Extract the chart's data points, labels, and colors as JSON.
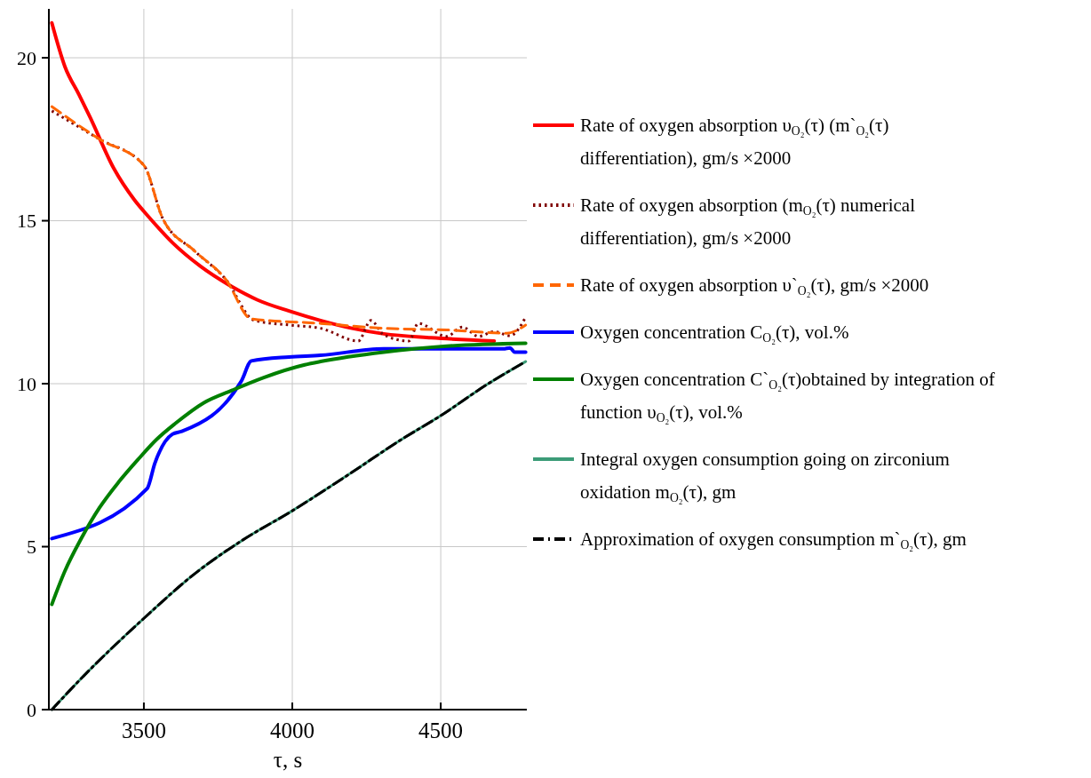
{
  "chart_data": {
    "type": "line",
    "xlabel": "τ, s",
    "xlim": [
      3180,
      4790
    ],
    "xticks": [
      3500,
      4000,
      4500
    ],
    "ylim": [
      0,
      21.5
    ],
    "yticks": [
      0,
      5,
      10,
      15,
      20
    ],
    "grid": true,
    "legend": "right",
    "series": [
      {
        "name": "Rate of oxygen absorption υ$_{O₂}$(τ) (m`$_{O₂}$(τ) differentiation), gm/s ×2000",
        "color": "#ff0000",
        "line_style": "solid",
        "x": [
          3190,
          3234,
          3282,
          3319,
          3399,
          3468,
          3521,
          3596,
          3691,
          3798,
          3883,
          3989,
          4095,
          4201,
          4308,
          4467,
          4680
        ],
        "values": [
          21.07,
          19.73,
          18.86,
          18.17,
          16.6,
          15.64,
          15.07,
          14.33,
          13.6,
          12.97,
          12.57,
          12.23,
          11.94,
          11.7,
          11.53,
          11.41,
          11.31
        ]
      },
      {
        "name": "Rate of oxygen absorption (m$_{O₂}$(τ) numerical differentiation), gm/s ×2000",
        "color": "#800000",
        "line_style": "dotted",
        "x": [
          3190,
          3351,
          3500,
          3564,
          3670,
          3776,
          3872,
          3989,
          4095,
          4222,
          4265,
          4308,
          4393,
          4424,
          4520,
          4573,
          4627,
          4680,
          4733,
          4786
        ],
        "values": [
          18.37,
          17.5,
          16.7,
          15.06,
          14.08,
          13.2,
          11.94,
          11.8,
          11.7,
          11.31,
          11.94,
          11.5,
          11.31,
          11.85,
          11.45,
          11.74,
          11.45,
          11.6,
          11.47,
          12.04
        ]
      },
      {
        "name": "Rate of oxygen absorption υ`$_{O₂}$(τ), gm/s ×2000",
        "color": "#ff6600",
        "line_style": "dashed",
        "x": [
          3190,
          3351,
          3500,
          3564,
          3670,
          3776,
          3862,
          4095,
          4308,
          4520,
          4722,
          4786
        ],
        "values": [
          18.5,
          17.5,
          16.7,
          15.06,
          14.08,
          13.2,
          11.99,
          11.85,
          11.7,
          11.65,
          11.55,
          11.8
        ]
      },
      {
        "name": "Oxygen concentration C$_{O₂}$(τ), vol.%",
        "color": "#0000ff",
        "line_style": "solid",
        "x": [
          3190,
          3511,
          3537,
          3596,
          3628,
          3829,
          3862,
          3989,
          4095,
          4308,
          4711,
          4733,
          4749,
          4786
        ],
        "values": [
          5.25,
          6.78,
          7.56,
          8.45,
          8.54,
          10.09,
          10.7,
          10.82,
          10.87,
          11.07,
          11.07,
          11.1,
          10.97,
          10.97
        ]
      },
      {
        "name": "Oxygen concentration C`$_{O₂}$(τ)obtained by integration of function υ$_{O₂}$(τ), vol.%",
        "color": "#008000",
        "line_style": "solid",
        "x": [
          3190,
          3234,
          3288,
          3351,
          3415,
          3479,
          3543,
          3606,
          3701,
          3798,
          3904,
          4042,
          4095,
          4308,
          4520,
          4786
        ],
        "values": [
          3.23,
          4.25,
          5.23,
          6.2,
          6.98,
          7.66,
          8.29,
          8.78,
          9.41,
          9.8,
          10.19,
          10.58,
          10.68,
          10.97,
          11.15,
          11.24
        ]
      },
      {
        "name": "Integral oxygen consumption going on zirconium oxidation m$_{O₂}$(τ), gm",
        "color": "#3c9c78",
        "line_style": "solid",
        "x": [
          3190,
          3298,
          3500,
          3670,
          3829,
          4000,
          4201,
          4361,
          4500,
          4660,
          4786
        ],
        "values": [
          0,
          1.04,
          2.8,
          4.16,
          5.18,
          6.1,
          7.28,
          8.25,
          9.02,
          10.0,
          10.68
        ]
      },
      {
        "name": "Approximation of oxygen consumption m`$_{O₂}$(τ), gm",
        "color": "#000000",
        "line_style": "dashdot",
        "x": [
          3190,
          3298,
          3500,
          3670,
          3829,
          4000,
          4201,
          4361,
          4500,
          4660,
          4786
        ],
        "values": [
          0,
          1.04,
          2.8,
          4.16,
          5.18,
          6.1,
          7.28,
          8.25,
          9.02,
          10.0,
          10.68
        ]
      }
    ]
  }
}
